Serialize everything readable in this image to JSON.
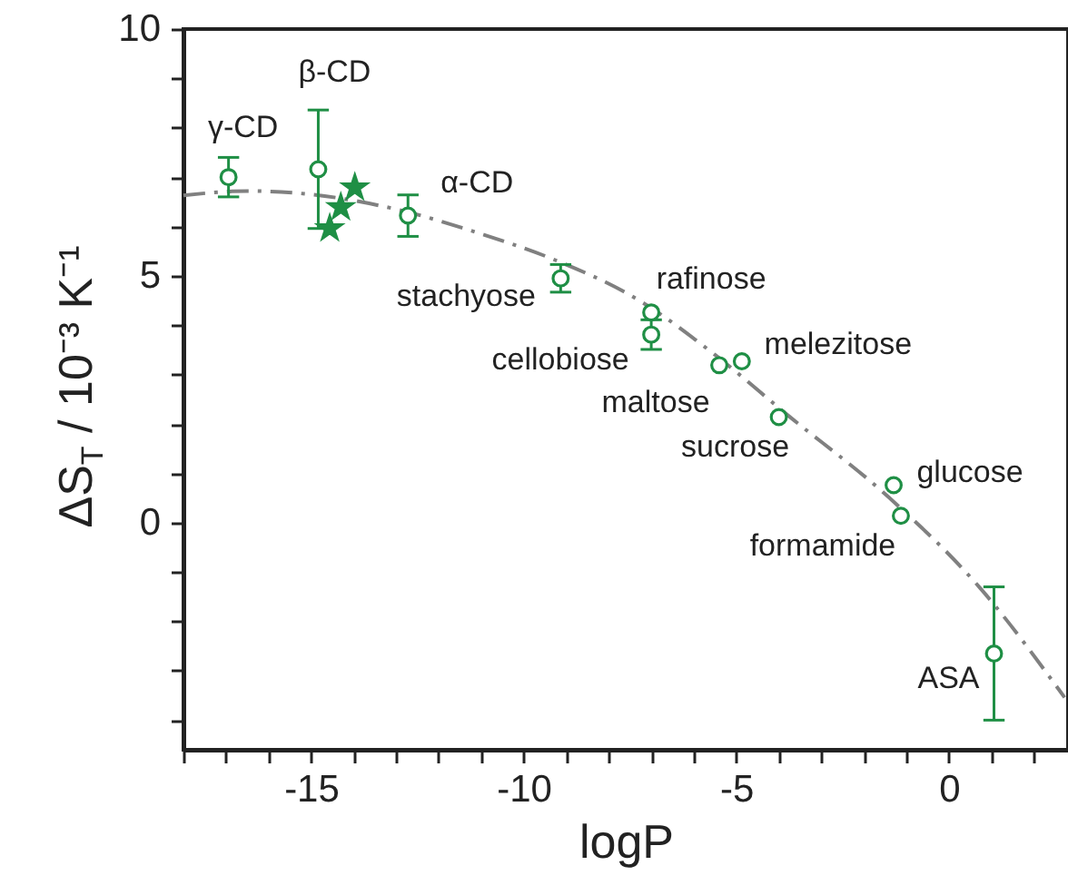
{
  "chart_data": {
    "type": "scatter",
    "xlabel": "logP",
    "ylabel": "ΔS$_{T}$ / 10⁻³ K⁻¹",
    "xlim": [
      -18,
      2.8
    ],
    "ylim": [
      -4.6,
      10
    ],
    "xticks": [
      {
        "value": -18,
        "label": null
      },
      {
        "value": -17,
        "label": null
      },
      {
        "value": -16,
        "label": null
      },
      -15,
      {
        "value": -14,
        "label": null
      },
      {
        "value": -13,
        "label": null
      },
      {
        "value": -12,
        "label": null
      },
      {
        "value": -11,
        "label": null
      },
      -10,
      {
        "value": -9,
        "label": null
      },
      {
        "value": -8,
        "label": null
      },
      {
        "value": -7,
        "label": null
      },
      {
        "value": -6,
        "label": null
      },
      -5,
      {
        "value": -4,
        "label": null
      },
      {
        "value": -3,
        "label": null
      },
      {
        "value": -2,
        "label": null
      },
      {
        "value": -1,
        "label": null
      },
      0,
      {
        "value": 1,
        "label": null
      },
      {
        "value": 2,
        "label": null
      }
    ],
    "yticks": [
      {
        "value": -4,
        "label": null
      },
      {
        "value": -3,
        "label": null
      },
      {
        "value": -2,
        "label": null
      },
      {
        "value": -1,
        "label": null
      },
      0,
      {
        "value": 1,
        "label": null
      },
      {
        "value": 2,
        "label": null
      },
      {
        "value": 3,
        "label": null
      },
      {
        "value": 4,
        "label": null
      },
      5,
      {
        "value": 6,
        "label": null
      },
      {
        "value": 7,
        "label": null
      },
      {
        "value": 8,
        "label": null
      },
      {
        "value": 9,
        "label": null
      },
      10
    ],
    "grid": false,
    "series": [
      {
        "type": "line",
        "color": "#808080",
        "line_style": "dashed",
        "x": [
          -18,
          -16.5,
          -15,
          -13,
          -11,
          -9.4,
          -7.26,
          -5.5,
          -3.85,
          -1.41,
          0.73,
          2.72
        ],
        "values": [
          6.63,
          6.72,
          6.65,
          6.35,
          5.85,
          5.37,
          4.49,
          3.4,
          2.22,
          0.51,
          -1.32,
          -3.54
        ]
      },
      {
        "color": "#1f8f45",
        "marker": "circle",
        "x": [
          -16.94,
          -14.83,
          -12.72,
          -9.13,
          -7.0,
          -7.0,
          -5.4,
          -4.87,
          -4.0,
          -1.3,
          -1.13,
          1.06
        ],
        "values": [
          7.0,
          7.16,
          6.22,
          4.95,
          4.26,
          3.81,
          3.19,
          3.27,
          2.14,
          0.76,
          0.14,
          -2.65
        ],
        "errors": [
          0.4,
          1.2,
          0.42,
          0.28,
          null,
          0.3,
          null,
          null,
          null,
          null,
          null,
          1.35
        ]
      },
      {
        "color": "#1f8f45",
        "marker": "star",
        "x": [
          -14.56,
          -14.3,
          -13.97
        ],
        "values": [
          5.96,
          6.39,
          6.79
        ]
      }
    ],
    "annotations": [
      {
        "text": "γ-CD",
        "x": -16.94,
        "y": 7.0
      },
      {
        "text": "β-CD",
        "x": -14.83,
        "y": 7.16
      },
      {
        "text": "α-CD",
        "x": -12.72,
        "y": 6.22
      },
      {
        "text": "stachyose",
        "x": -9.13,
        "y": 4.95
      },
      {
        "text": "rafinose",
        "x": -7.0,
        "y": 4.26
      },
      {
        "text": "cellobiose",
        "x": -7.0,
        "y": 3.81
      },
      {
        "text": "maltose",
        "x": -5.4,
        "y": 3.19
      },
      {
        "text": "melezitose",
        "x": -4.87,
        "y": 3.27
      },
      {
        "text": "sucrose",
        "x": -4.0,
        "y": 2.14
      },
      {
        "text": "glucose",
        "x": -1.3,
        "y": 0.76
      },
      {
        "text": "formamide",
        "x": -1.13,
        "y": 0.14
      },
      {
        "text": "ASA",
        "x": 1.06,
        "y": -2.65
      }
    ]
  }
}
